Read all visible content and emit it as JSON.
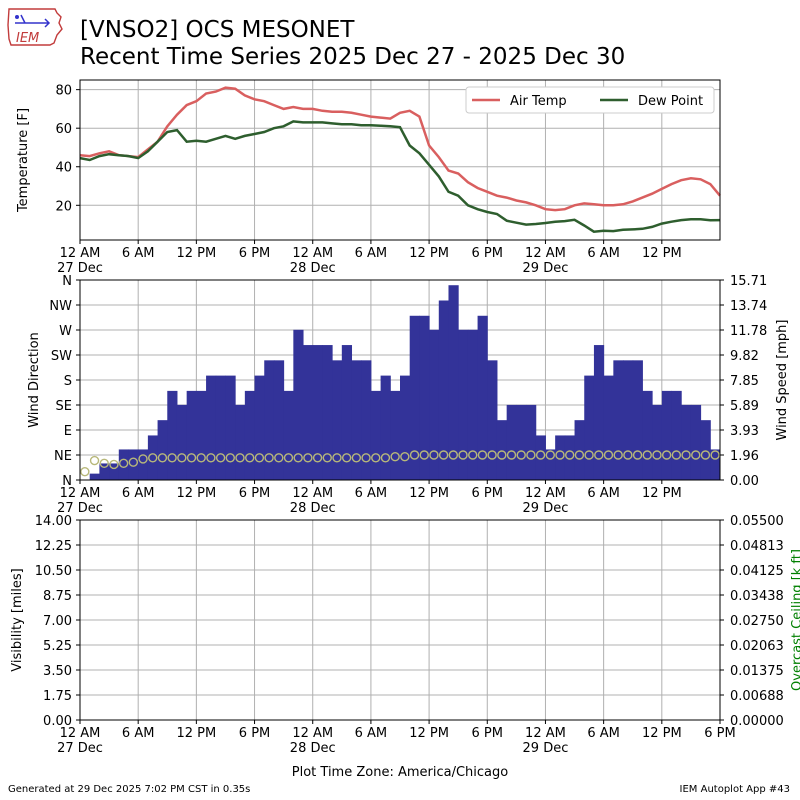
{
  "header": {
    "logo_text": "IEM",
    "title_line1": "[VNSO2] OCS MESONET",
    "title_line2": "Recent Time Series 2025 Dec 27 - 2025 Dec 30"
  },
  "footer": {
    "generated": "Generated at 29 Dec 2025 7:02 PM CST in 0.35s",
    "app": "IEM Autoplot App #43"
  },
  "x_axis": {
    "label": "Plot Time Zone: America/Chicago",
    "hour_labels": [
      "12 AM",
      "6 AM",
      "12 PM",
      "6 PM",
      "12 AM",
      "6 AM",
      "12 PM",
      "6 PM",
      "12 AM",
      "6 AM",
      "12 PM",
      "6 PM"
    ],
    "hour_labels_bottom": [
      "12 AM",
      "6 AM",
      "12 PM",
      "6 PM",
      "12 AM",
      "6 AM",
      "12 PM",
      "6 PM",
      "12 AM",
      "6 AM",
      "12 PM",
      "6 PM"
    ],
    "day_labels": [
      {
        "hour": 0,
        "label": "27 Dec"
      },
      {
        "hour": 24,
        "label": "28 Dec"
      },
      {
        "hour": 48,
        "label": "29 Dec"
      }
    ]
  },
  "chart_data": [
    {
      "type": "line",
      "name": "temperature",
      "ylabel": "Temperature [F]",
      "xlim_hours": [
        0,
        66
      ],
      "ylim": [
        2,
        85
      ],
      "yticks": [
        20,
        40,
        60,
        80
      ],
      "grid": true,
      "legend": "top-right",
      "colors": {
        "air_temp": "#d95f5f",
        "dew_point": "#2e5e2e"
      },
      "series": [
        {
          "name": "Air Temp",
          "points": [
            [
              0,
              46
            ],
            [
              1,
              45.5
            ],
            [
              2,
              47
            ],
            [
              3,
              48
            ],
            [
              4,
              46
            ],
            [
              5,
              45.5
            ],
            [
              6,
              45
            ],
            [
              7,
              49
            ],
            [
              8,
              53
            ],
            [
              9,
              61
            ],
            [
              10,
              67
            ],
            [
              11,
              72
            ],
            [
              12,
              74
            ],
            [
              13,
              78
            ],
            [
              14,
              79
            ],
            [
              15,
              81
            ],
            [
              16,
              80.5
            ],
            [
              17,
              77
            ],
            [
              18,
              75
            ],
            [
              19,
              74
            ],
            [
              20,
              72
            ],
            [
              21,
              70
            ],
            [
              22,
              71
            ],
            [
              23,
              70
            ],
            [
              24,
              70
            ],
            [
              25,
              69
            ],
            [
              26,
              68.5
            ],
            [
              27,
              68.5
            ],
            [
              28,
              68
            ],
            [
              29,
              67
            ],
            [
              30,
              66
            ],
            [
              31,
              65.5
            ],
            [
              32,
              65
            ],
            [
              33,
              68
            ],
            [
              34,
              69
            ],
            [
              35,
              66
            ],
            [
              36,
              51
            ],
            [
              37,
              45
            ],
            [
              38,
              38
            ],
            [
              39,
              36.5
            ],
            [
              40,
              32
            ],
            [
              41,
              29
            ],
            [
              42,
              27
            ],
            [
              43,
              25
            ],
            [
              44,
              24
            ],
            [
              45,
              22.5
            ],
            [
              46,
              21.5
            ],
            [
              47,
              20
            ],
            [
              48,
              18
            ],
            [
              49,
              17.5
            ],
            [
              50,
              18
            ],
            [
              51,
              20
            ],
            [
              52,
              21
            ],
            [
              53,
              20.5
            ],
            [
              54,
              20
            ],
            [
              55,
              20
            ],
            [
              56,
              20.5
            ],
            [
              57,
              22
            ],
            [
              58,
              24
            ],
            [
              59,
              26
            ],
            [
              60,
              28.5
            ],
            [
              61,
              31
            ],
            [
              62,
              33
            ],
            [
              63,
              34
            ],
            [
              64,
              33.5
            ],
            [
              65,
              31
            ],
            [
              66,
              25
            ]
          ]
        },
        {
          "name": "Dew Point",
          "points": [
            [
              0,
              44.5
            ],
            [
              1,
              43.5
            ],
            [
              2,
              45.5
            ],
            [
              3,
              46.5
            ],
            [
              4,
              46
            ],
            [
              5,
              45.5
            ],
            [
              6,
              44.5
            ],
            [
              7,
              48
            ],
            [
              8,
              53
            ],
            [
              9,
              58
            ],
            [
              10,
              59
            ],
            [
              11,
              53
            ],
            [
              12,
              53.5
            ],
            [
              13,
              53
            ],
            [
              14,
              54.5
            ],
            [
              15,
              56
            ],
            [
              16,
              54.5
            ],
            [
              17,
              56
            ],
            [
              18,
              57
            ],
            [
              19,
              58
            ],
            [
              20,
              60
            ],
            [
              21,
              61
            ],
            [
              22,
              63.5
            ],
            [
              23,
              63
            ],
            [
              24,
              63
            ],
            [
              25,
              63
            ],
            [
              26,
              62.5
            ],
            [
              27,
              62
            ],
            [
              28,
              62
            ],
            [
              29,
              61.5
            ],
            [
              30,
              61.5
            ],
            [
              31,
              61.3
            ],
            [
              32,
              61
            ],
            [
              33,
              60.5
            ],
            [
              34,
              51
            ],
            [
              35,
              47
            ],
            [
              36,
              41
            ],
            [
              37,
              35
            ],
            [
              38,
              27
            ],
            [
              39,
              25
            ],
            [
              40,
              20
            ],
            [
              41,
              18
            ],
            [
              42,
              16.5
            ],
            [
              43,
              15.5
            ],
            [
              44,
              12
            ],
            [
              45,
              11
            ],
            [
              46,
              10
            ],
            [
              47,
              10.3
            ],
            [
              48,
              10.8
            ],
            [
              49,
              11.5
            ],
            [
              50,
              11.8
            ],
            [
              51,
              12.5
            ],
            [
              52,
              9.5
            ],
            [
              53,
              6.3
            ],
            [
              54,
              6.8
            ],
            [
              55,
              6.6
            ],
            [
              56,
              7.3
            ],
            [
              57,
              7.5
            ],
            [
              58,
              7.8
            ],
            [
              59,
              8.8
            ],
            [
              60,
              10.5
            ],
            [
              61,
              11.5
            ],
            [
              62,
              12.3
            ],
            [
              63,
              12.8
            ],
            [
              64,
              12.8
            ],
            [
              65,
              12.2
            ],
            [
              66,
              12.3
            ]
          ]
        }
      ]
    },
    {
      "type": "bar",
      "name": "wind",
      "ylabel": "Wind Direction",
      "ylabel_right": "Wind Speed [mph]",
      "xlim_hours": [
        0,
        66
      ],
      "direction_ticks": [
        "N",
        "NE",
        "E",
        "SE",
        "S",
        "SW",
        "W",
        "NW",
        "N"
      ],
      "speed_ticks": [
        "0.00",
        "1.96",
        "3.93",
        "5.89",
        "7.85",
        "9.82",
        "11.78",
        "13.74",
        "15.71"
      ],
      "speed_max": 15.71,
      "grid": true,
      "colors": {
        "bar": "#333399",
        "marker": "#b8b87a"
      },
      "wind_speed_mph": [
        0,
        0.5,
        1.3,
        1.3,
        2.4,
        2.4,
        2.4,
        3.5,
        4.7,
        7,
        5.9,
        7,
        7,
        8.2,
        8.2,
        8.2,
        5.9,
        7,
        8.2,
        9.4,
        9.4,
        7,
        11.8,
        10.6,
        10.6,
        10.6,
        9.4,
        10.6,
        9.4,
        9.4,
        7,
        8.2,
        7,
        8.2,
        12.9,
        12.9,
        11.8,
        14.1,
        15.3,
        11.8,
        11.8,
        12.9,
        9.4,
        4.7,
        5.9,
        5.9,
        5.9,
        3.5,
        2.4,
        3.5,
        3.5,
        4.7,
        8.2,
        10.6,
        8.2,
        9.4,
        9.4,
        9.4,
        7,
        5.9,
        7,
        7,
        5.9,
        5.9,
        4.7,
        2.4
      ],
      "wind_direction_deg": [
        15,
        35,
        30,
        28,
        30,
        32,
        38,
        40,
        40,
        40,
        40,
        40,
        40,
        40,
        40,
        40,
        40,
        40,
        40,
        40,
        40,
        40,
        40,
        40,
        40,
        40,
        40,
        40,
        40,
        40,
        40,
        40,
        42,
        42,
        45,
        45,
        45,
        45,
        45,
        45,
        45,
        45,
        45,
        45,
        45,
        45,
        45,
        45,
        45,
        45,
        45,
        45,
        45,
        45,
        45,
        45,
        45,
        45,
        45,
        45,
        45,
        45,
        45,
        45,
        45,
        45
      ]
    },
    {
      "type": "line",
      "name": "visibility",
      "ylabel": "Visibility [miles]",
      "ylabel_right": "Overcast Ceiling [k ft]",
      "xlim_hours": [
        0,
        66
      ],
      "left_ticks": [
        "0.00",
        "1.75",
        "3.50",
        "5.25",
        "7.00",
        "8.75",
        "10.50",
        "12.25",
        "14.00"
      ],
      "right_ticks": [
        "0.00000",
        "0.00688",
        "0.01375",
        "0.02063",
        "0.02750",
        "0.03438",
        "0.04125",
        "0.04813",
        "0.05500"
      ],
      "grid": true,
      "colors": {
        "right_label": "#008000"
      },
      "series": []
    }
  ]
}
